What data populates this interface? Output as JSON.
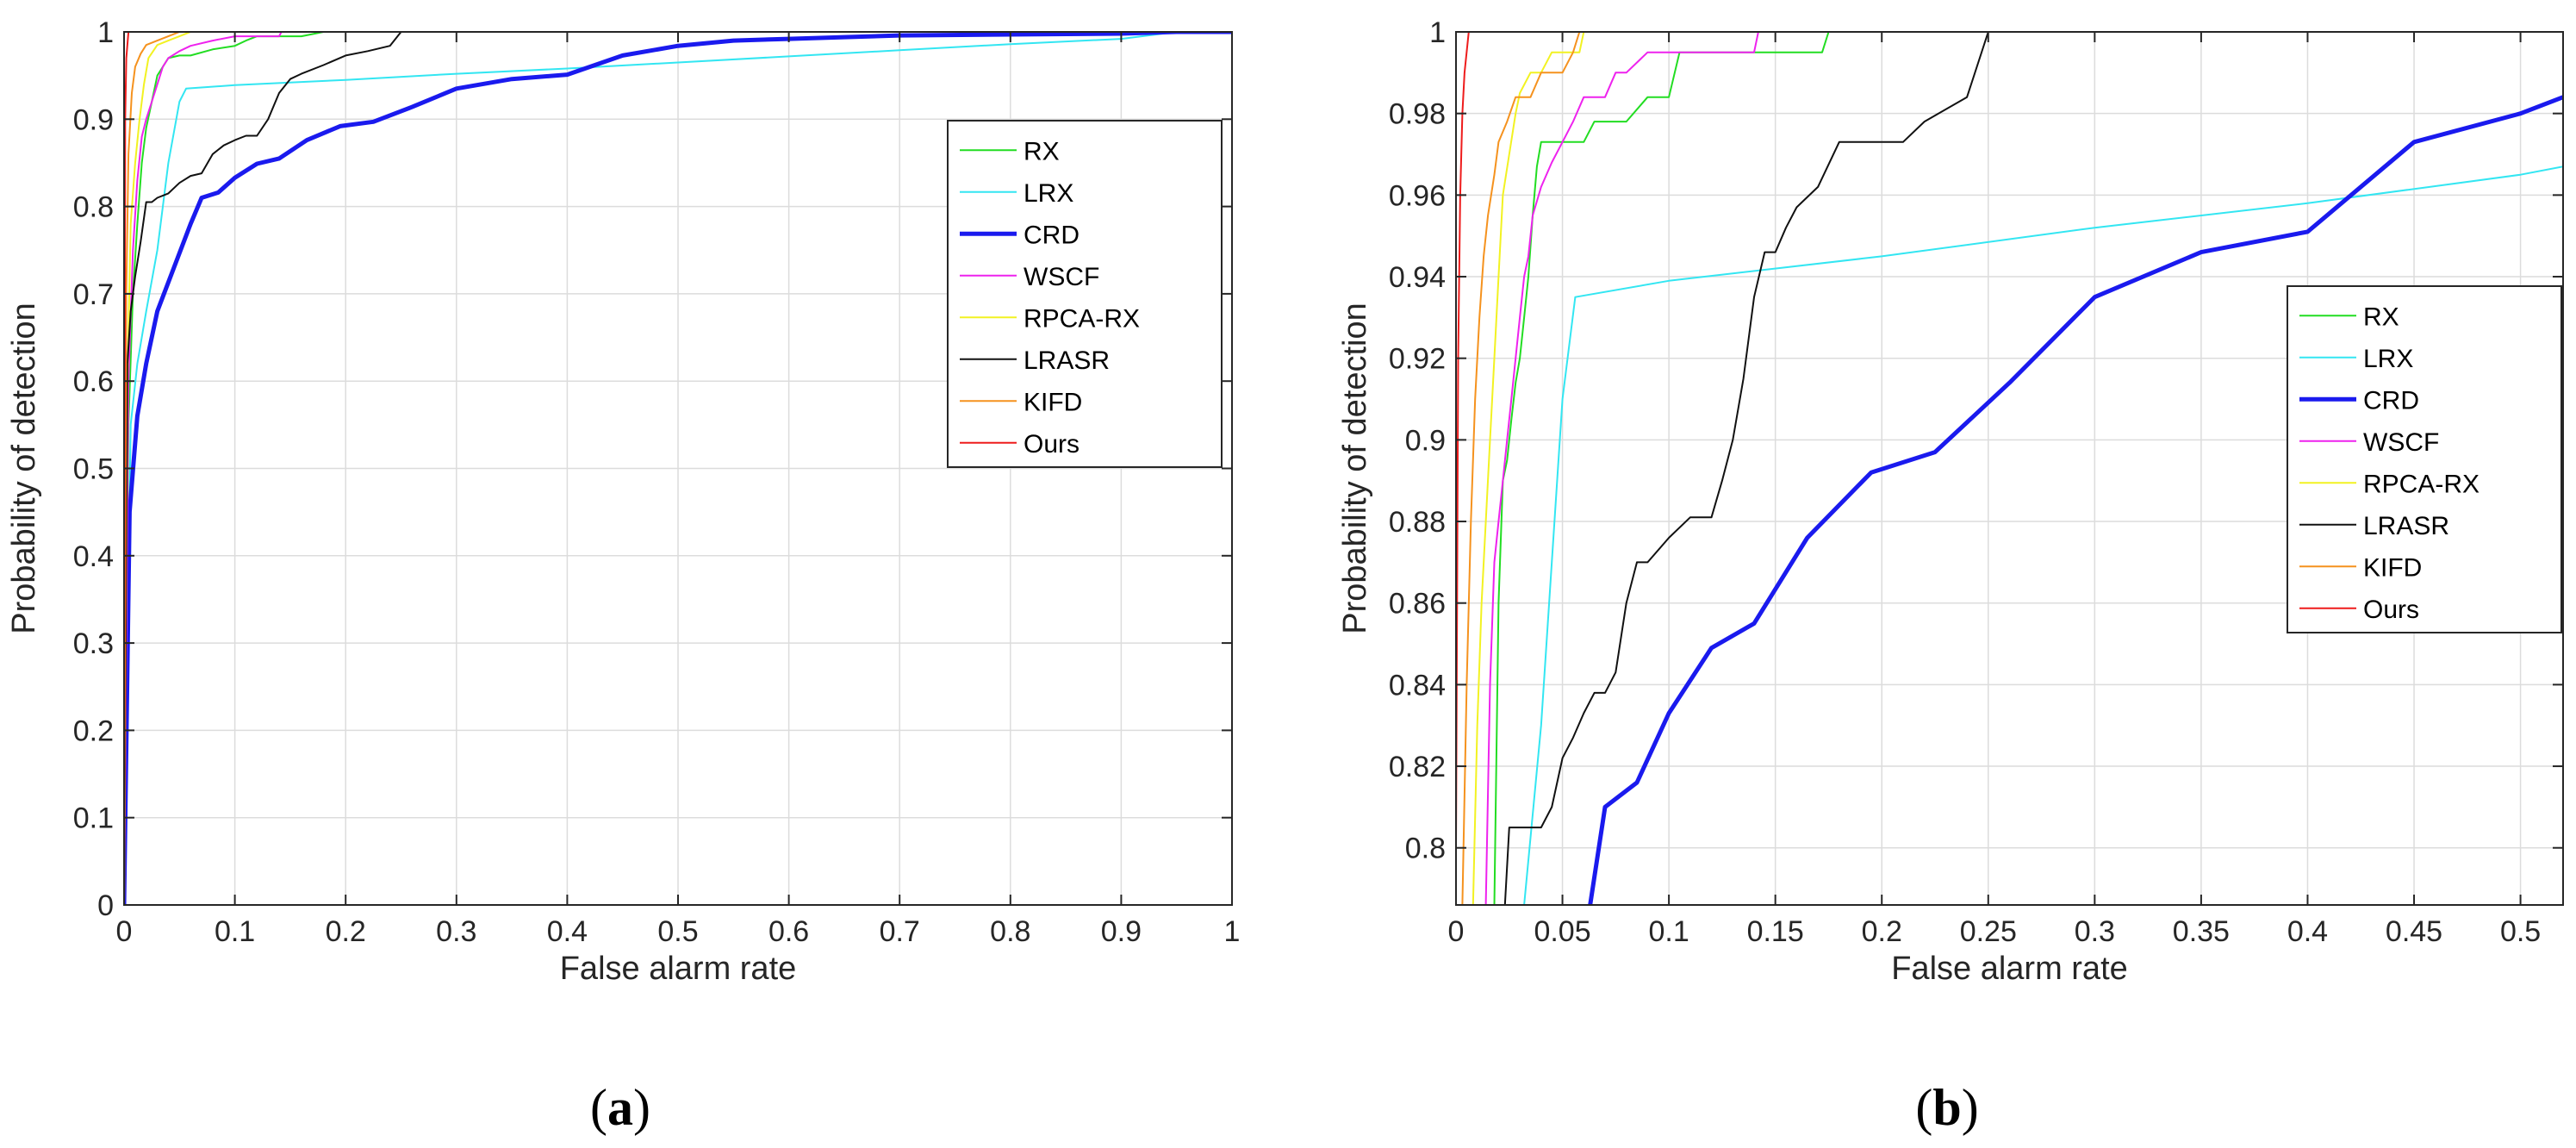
{
  "chart_data": [
    {
      "type": "line",
      "panel": "a",
      "caption": {
        "open": "(",
        "letter": "a",
        "close": ")"
      },
      "xlabel": "False alarm rate",
      "ylabel": "Probability of detection",
      "xlim": [
        0,
        1
      ],
      "ylim": [
        0,
        1
      ],
      "xticks": [
        0,
        0.1,
        0.2,
        0.3,
        0.4,
        0.5,
        0.6,
        0.7,
        0.8,
        0.9,
        1
      ],
      "xtick_labels": [
        "0",
        "0.1",
        "0.2",
        "0.3",
        "0.4",
        "0.5",
        "0.6",
        "0.7",
        "0.8",
        "0.9",
        "1"
      ],
      "yticks": [
        0,
        0.1,
        0.2,
        0.3,
        0.4,
        0.5,
        0.6,
        0.7,
        0.8,
        0.9,
        1
      ],
      "ytick_labels": [
        "0",
        "0.1",
        "0.2",
        "0.3",
        "0.4",
        "0.5",
        "0.6",
        "0.7",
        "0.8",
        "0.9",
        "1"
      ],
      "grid": true,
      "legend_position": "top-right",
      "series": [
        {
          "name": "RX",
          "color": "#22dd22",
          "width": 2,
          "x": [
            0,
            0.004,
            0.008,
            0.012,
            0.016,
            0.02,
            0.025,
            0.03,
            0.04,
            0.05,
            0.06,
            0.08,
            0.1,
            0.11,
            0.12,
            0.14,
            0.16,
            0.18,
            1
          ],
          "y": [
            0,
            0.55,
            0.7,
            0.78,
            0.85,
            0.89,
            0.92,
            0.95,
            0.97,
            0.973,
            0.973,
            0.98,
            0.984,
            0.99,
            0.995,
            0.995,
            0.995,
            1,
            1
          ]
        },
        {
          "name": "LRX",
          "color": "#33e6f2",
          "width": 2,
          "x": [
            0,
            0.006,
            0.012,
            0.02,
            0.03,
            0.04,
            0.05,
            0.056,
            0.1,
            0.2,
            0.3,
            0.4,
            0.5,
            0.6,
            0.7,
            0.8,
            0.9,
            0.95,
            1
          ],
          "y": [
            0,
            0.55,
            0.62,
            0.68,
            0.75,
            0.85,
            0.92,
            0.935,
            0.939,
            0.945,
            0.952,
            0.958,
            0.965,
            0.972,
            0.979,
            0.986,
            0.992,
            1,
            1
          ]
        },
        {
          "name": "CRD",
          "color": "#1a1aee",
          "width": 5,
          "x": [
            0,
            0.005,
            0.012,
            0.02,
            0.03,
            0.045,
            0.06,
            0.07,
            0.085,
            0.1,
            0.12,
            0.14,
            0.165,
            0.195,
            0.225,
            0.26,
            0.3,
            0.35,
            0.4,
            0.45,
            0.5,
            0.55,
            0.6,
            0.65,
            0.7,
            0.8,
            0.9,
            0.95,
            1
          ],
          "y": [
            0,
            0.45,
            0.56,
            0.62,
            0.68,
            0.73,
            0.78,
            0.81,
            0.816,
            0.833,
            0.849,
            0.855,
            0.876,
            0.892,
            0.897,
            0.914,
            0.935,
            0.946,
            0.951,
            0.973,
            0.984,
            0.99,
            0.992,
            0.994,
            0.996,
            0.997,
            0.998,
            1,
            1
          ]
        },
        {
          "name": "WSCF",
          "color": "#ee22ee",
          "width": 2,
          "x": [
            0,
            0.004,
            0.008,
            0.012,
            0.016,
            0.02,
            0.025,
            0.03,
            0.035,
            0.04,
            0.05,
            0.06,
            0.08,
            0.1,
            0.12,
            0.14,
            0.142,
            1
          ],
          "y": [
            0,
            0.6,
            0.75,
            0.83,
            0.88,
            0.9,
            0.92,
            0.94,
            0.96,
            0.97,
            0.978,
            0.984,
            0.99,
            0.995,
            0.995,
            0.995,
            1,
            1
          ]
        },
        {
          "name": "RPCA-RX",
          "color": "#f2f222",
          "width": 2,
          "x": [
            0,
            0.003,
            0.006,
            0.01,
            0.014,
            0.018,
            0.022,
            0.03,
            0.04,
            0.05,
            0.06,
            1
          ],
          "y": [
            0,
            0.6,
            0.78,
            0.85,
            0.9,
            0.94,
            0.97,
            0.985,
            0.99,
            0.995,
            1,
            1
          ]
        },
        {
          "name": "LRASR",
          "color": "#111111",
          "width": 2,
          "x": [
            0,
            0.003,
            0.006,
            0.01,
            0.015,
            0.02,
            0.025,
            0.03,
            0.04,
            0.05,
            0.06,
            0.07,
            0.08,
            0.09,
            0.1,
            0.11,
            0.12,
            0.13,
            0.14,
            0.15,
            0.16,
            0.18,
            0.2,
            0.22,
            0.24,
            0.25,
            1
          ],
          "y": [
            0,
            0.62,
            0.68,
            0.72,
            0.76,
            0.805,
            0.805,
            0.81,
            0.815,
            0.827,
            0.835,
            0.838,
            0.86,
            0.87,
            0.876,
            0.881,
            0.881,
            0.9,
            0.93,
            0.946,
            0.952,
            0.962,
            0.973,
            0.978,
            0.984,
            1,
            1
          ]
        },
        {
          "name": "KIFD",
          "color": "#f5921e",
          "width": 2,
          "x": [
            0,
            0.002,
            0.004,
            0.007,
            0.01,
            0.015,
            0.02,
            0.03,
            0.04,
            0.05,
            1
          ],
          "y": [
            0,
            0.7,
            0.86,
            0.93,
            0.96,
            0.975,
            0.985,
            0.99,
            0.995,
            1,
            1
          ]
        },
        {
          "name": "Ours",
          "color": "#ee1c1c",
          "width": 2,
          "x": [
            0,
            0.001,
            0.002,
            0.004,
            1
          ],
          "y": [
            0,
            0.9,
            0.97,
            1,
            1
          ]
        }
      ]
    },
    {
      "type": "line",
      "panel": "b",
      "caption": {
        "open": "(",
        "letter": "b",
        "close": ")"
      },
      "xlabel": "False alarm rate",
      "ylabel": "Probability of detection",
      "xlim": [
        0,
        0.52
      ],
      "ylim": [
        0.786,
        1
      ],
      "xticks": [
        0,
        0.05,
        0.1,
        0.15,
        0.2,
        0.25,
        0.3,
        0.35,
        0.4,
        0.45,
        0.5
      ],
      "xtick_labels": [
        "0",
        "0.05",
        "0.1",
        "0.15",
        "0.2",
        "0.25",
        "0.3",
        "0.35",
        "0.4",
        "0.45",
        "0.5"
      ],
      "yticks": [
        0.8,
        0.82,
        0.84,
        0.86,
        0.88,
        0.9,
        0.92,
        0.94,
        0.96,
        0.98,
        1
      ],
      "ytick_labels": [
        "0.8",
        "0.82",
        "0.84",
        "0.86",
        "0.88",
        "0.9",
        "0.92",
        "0.94",
        "0.96",
        "0.98",
        "1"
      ],
      "grid": true,
      "legend_position": "right",
      "series": [
        {
          "name": "RX",
          "color": "#22dd22",
          "width": 2,
          "x": [
            0.018,
            0.02,
            0.022,
            0.024,
            0.026,
            0.028,
            0.03,
            0.032,
            0.034,
            0.036,
            0.038,
            0.04,
            0.05,
            0.06,
            0.065,
            0.08,
            0.09,
            0.1,
            0.105,
            0.12,
            0.14,
            0.16,
            0.172,
            0.175,
            0.52
          ],
          "y": [
            0.786,
            0.86,
            0.89,
            0.895,
            0.905,
            0.914,
            0.92,
            0.93,
            0.94,
            0.955,
            0.967,
            0.973,
            0.973,
            0.973,
            0.978,
            0.978,
            0.984,
            0.984,
            0.995,
            0.995,
            0.995,
            0.995,
            0.995,
            1,
            1
          ]
        },
        {
          "name": "LRX",
          "color": "#33e6f2",
          "width": 2,
          "x": [
            0.032,
            0.04,
            0.045,
            0.05,
            0.056,
            0.1,
            0.2,
            0.3,
            0.4,
            0.5,
            0.52
          ],
          "y": [
            0.786,
            0.83,
            0.87,
            0.91,
            0.935,
            0.939,
            0.945,
            0.952,
            0.958,
            0.965,
            0.967
          ]
        },
        {
          "name": "CRD",
          "color": "#1a1aee",
          "width": 5,
          "x": [
            0.063,
            0.07,
            0.085,
            0.1,
            0.12,
            0.14,
            0.165,
            0.195,
            0.225,
            0.26,
            0.3,
            0.35,
            0.4,
            0.45,
            0.5,
            0.52
          ],
          "y": [
            0.786,
            0.81,
            0.816,
            0.833,
            0.849,
            0.855,
            0.876,
            0.892,
            0.897,
            0.914,
            0.935,
            0.946,
            0.951,
            0.973,
            0.98,
            0.984
          ]
        },
        {
          "name": "WSCF",
          "color": "#ee22ee",
          "width": 2,
          "x": [
            0.014,
            0.016,
            0.018,
            0.02,
            0.022,
            0.024,
            0.026,
            0.028,
            0.03,
            0.032,
            0.034,
            0.036,
            0.04,
            0.045,
            0.05,
            0.055,
            0.06,
            0.07,
            0.075,
            0.08,
            0.09,
            0.1,
            0.12,
            0.14,
            0.142,
            0.52
          ],
          "y": [
            0.786,
            0.84,
            0.87,
            0.88,
            0.89,
            0.9,
            0.91,
            0.92,
            0.93,
            0.94,
            0.945,
            0.955,
            0.962,
            0.968,
            0.973,
            0.978,
            0.984,
            0.984,
            0.99,
            0.99,
            0.995,
            0.995,
            0.995,
            0.995,
            1,
            1
          ]
        },
        {
          "name": "RPCA-RX",
          "color": "#f2f222",
          "width": 2,
          "x": [
            0.008,
            0.01,
            0.012,
            0.014,
            0.016,
            0.018,
            0.02,
            0.022,
            0.025,
            0.028,
            0.03,
            0.035,
            0.04,
            0.045,
            0.05,
            0.055,
            0.058,
            0.06,
            0.52
          ],
          "y": [
            0.786,
            0.83,
            0.86,
            0.88,
            0.9,
            0.92,
            0.94,
            0.96,
            0.97,
            0.98,
            0.985,
            0.99,
            0.99,
            0.995,
            0.995,
            0.995,
            0.995,
            1,
            1
          ]
        },
        {
          "name": "LRASR",
          "color": "#111111",
          "width": 2,
          "x": [
            0.023,
            0.025,
            0.03,
            0.035,
            0.04,
            0.045,
            0.05,
            0.055,
            0.06,
            0.065,
            0.07,
            0.075,
            0.08,
            0.085,
            0.09,
            0.1,
            0.11,
            0.12,
            0.125,
            0.13,
            0.135,
            0.14,
            0.145,
            0.15,
            0.155,
            0.16,
            0.17,
            0.18,
            0.2,
            0.21,
            0.22,
            0.24,
            0.25,
            0.52
          ],
          "y": [
            0.786,
            0.805,
            0.805,
            0.805,
            0.805,
            0.81,
            0.822,
            0.827,
            0.833,
            0.838,
            0.838,
            0.843,
            0.86,
            0.87,
            0.87,
            0.876,
            0.881,
            0.881,
            0.89,
            0.9,
            0.915,
            0.935,
            0.946,
            0.946,
            0.952,
            0.957,
            0.962,
            0.973,
            0.973,
            0.973,
            0.978,
            0.984,
            1,
            1
          ]
        },
        {
          "name": "KIFD",
          "color": "#f5921e",
          "width": 2,
          "x": [
            0.003,
            0.005,
            0.007,
            0.009,
            0.011,
            0.013,
            0.015,
            0.018,
            0.02,
            0.024,
            0.028,
            0.035,
            0.04,
            0.05,
            0.055,
            0.058,
            0.52
          ],
          "y": [
            0.786,
            0.84,
            0.88,
            0.91,
            0.93,
            0.945,
            0.955,
            0.965,
            0.973,
            0.978,
            0.984,
            0.984,
            0.99,
            0.99,
            0.995,
            1,
            1
          ]
        },
        {
          "name": "Ours",
          "color": "#ee1c1c",
          "width": 2,
          "x": [
            0,
            0.001,
            0.002,
            0.003,
            0.004,
            0.006,
            0.52
          ],
          "y": [
            0.8,
            0.92,
            0.96,
            0.98,
            0.99,
            1,
            1
          ]
        }
      ]
    }
  ]
}
